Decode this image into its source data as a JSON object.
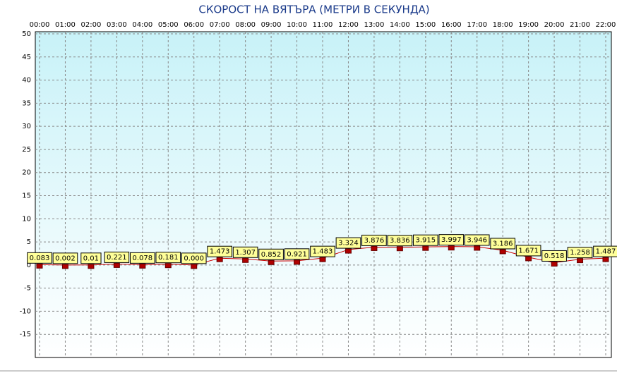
{
  "chart_data": {
    "type": "line",
    "title": "СКОРОСТ НА ВЯТЪРА (МЕТРИ В СЕКУНДА)",
    "categories": [
      "00:00",
      "01:00",
      "02:00",
      "03:00",
      "04:00",
      "05:00",
      "06:00",
      "07:00",
      "08:00",
      "09:00",
      "10:00",
      "11:00",
      "12:00",
      "13:00",
      "14:00",
      "15:00",
      "16:00",
      "17:00",
      "18:00",
      "19:00",
      "20:00",
      "21:00",
      "22:00"
    ],
    "series": [
      {
        "color": "#cc0000",
        "values": [
          0.083,
          0.002,
          0.01,
          0.221,
          0.078,
          0.181,
          0,
          1.473,
          1.307,
          0.852,
          0.921,
          1.483,
          3.324,
          3.876,
          3.836,
          3.915,
          3.997,
          3.946,
          3.186,
          1.671,
          0.518,
          1.258,
          1.487
        ],
        "value_labels": [
          "0.083",
          "0.002",
          "0.01",
          "0.221",
          "0.078",
          "0.181",
          "0.000",
          "1.473",
          "1.307",
          "0.852",
          "0.921",
          "1.483",
          "3.324",
          "3.876",
          "3.836",
          "3.915",
          "3.997",
          "3.946",
          "3.186",
          "1.671",
          "0.518",
          "1.258",
          "1.487"
        ]
      }
    ],
    "ylim": [
      -20,
      50
    ],
    "yticks": [
      50,
      45,
      40,
      35,
      30,
      25,
      20,
      15,
      10,
      5,
      0,
      -5,
      -10,
      -15
    ],
    "grid": true
  }
}
